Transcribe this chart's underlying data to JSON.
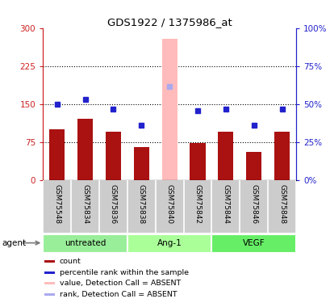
{
  "title": "GDS1922 / 1375986_at",
  "samples": [
    "GSM75548",
    "GSM75834",
    "GSM75836",
    "GSM75838",
    "GSM75840",
    "GSM75842",
    "GSM75844",
    "GSM75846",
    "GSM75848"
  ],
  "bar_values": [
    100,
    122,
    95,
    65,
    null,
    73,
    95,
    55,
    95
  ],
  "bar_color_normal": "#aa1111",
  "bar_color_absent": "#ffbbbb",
  "rank_values_pct": [
    50,
    53,
    47,
    36,
    62,
    46,
    47,
    36,
    47
  ],
  "rank_color_normal": "#2222cc",
  "rank_color_absent": "#aaaaee",
  "absent_index": 4,
  "absent_bar_value": 280,
  "ylim_left": [
    0,
    300
  ],
  "ylim_right": [
    0,
    100
  ],
  "yticks_left": [
    0,
    75,
    150,
    225,
    300
  ],
  "yticks_right": [
    0,
    25,
    50,
    75,
    100
  ],
  "ytick_labels_left": [
    "0",
    "75",
    "150",
    "225",
    "300"
  ],
  "ytick_labels_right": [
    "0%",
    "25%",
    "50%",
    "75%",
    "100%"
  ],
  "groups": [
    {
      "label": "untreated",
      "indices": [
        0,
        1,
        2
      ],
      "color": "#99ee99"
    },
    {
      "label": "Ang-1",
      "indices": [
        3,
        4,
        5
      ],
      "color": "#aaff99"
    },
    {
      "label": "VEGF",
      "indices": [
        6,
        7,
        8
      ],
      "color": "#66ee66"
    }
  ],
  "agent_label": "agent",
  "legend_items": [
    {
      "label": "count",
      "color": "#aa1111"
    },
    {
      "label": "percentile rank within the sample",
      "color": "#2222cc"
    },
    {
      "label": "value, Detection Call = ABSENT",
      "color": "#ffbbbb"
    },
    {
      "label": "rank, Detection Call = ABSENT",
      "color": "#aaaaee"
    }
  ],
  "left_axis_color": "#cc2222",
  "right_axis_color": "#2222cc",
  "plot_bg": "#ffffff",
  "outer_bg": "#ffffff",
  "grid_color": "#000000"
}
